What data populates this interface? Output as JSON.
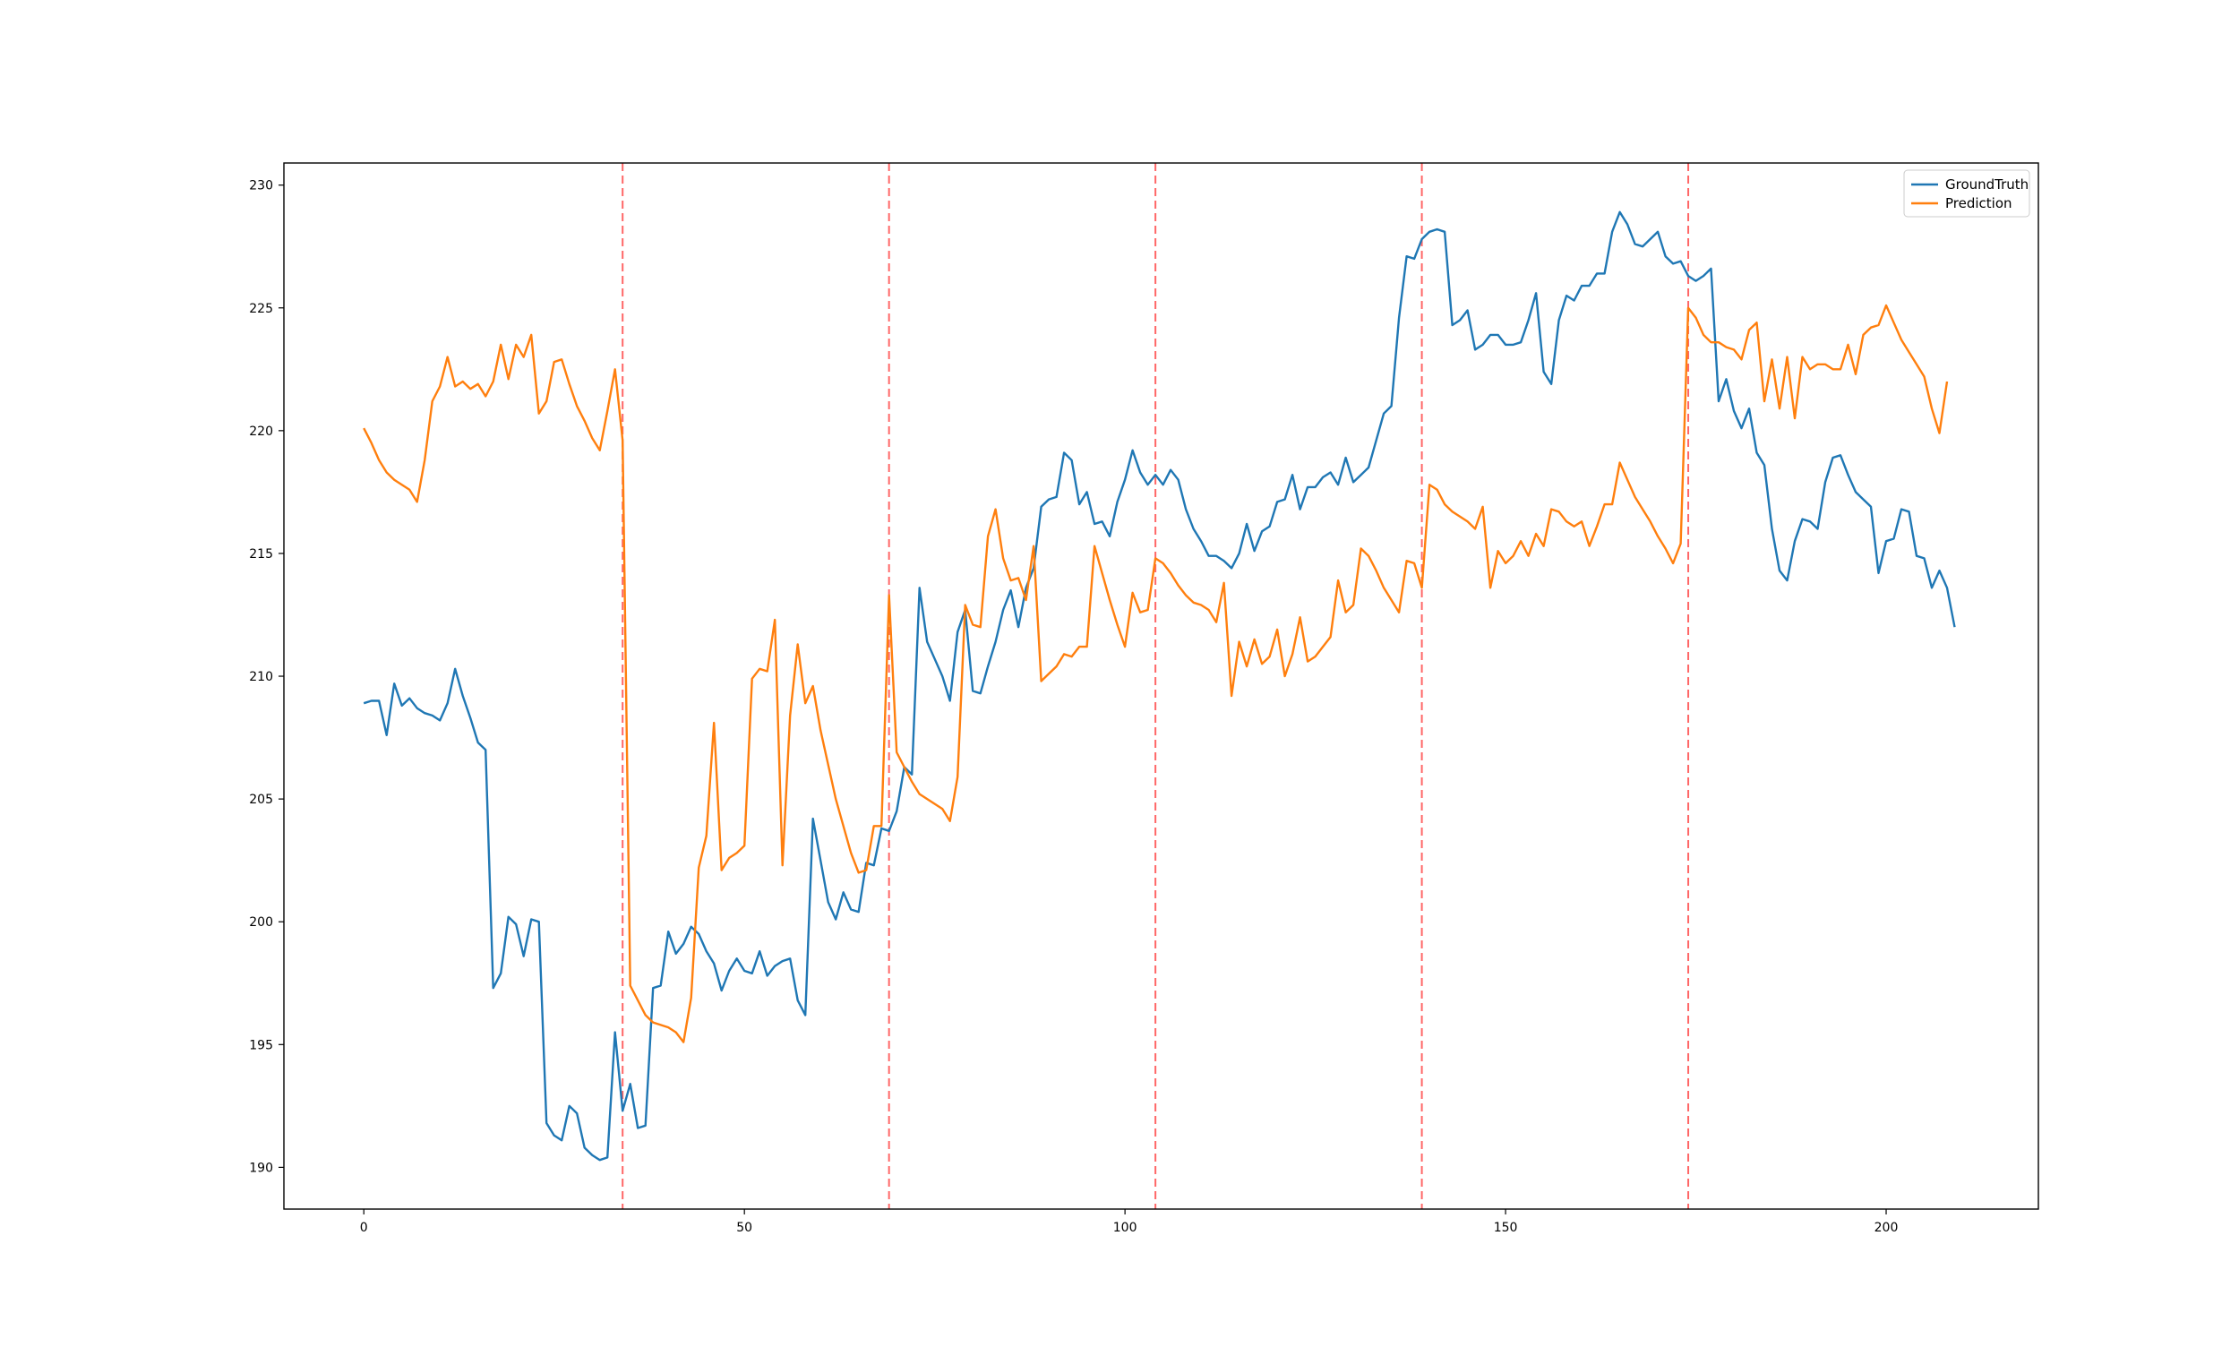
{
  "chart_data": {
    "type": "line",
    "title": "",
    "xlabel": "",
    "ylabel": "",
    "xlim": [
      -10.5,
      220
    ],
    "ylim": [
      188.3,
      230.9
    ],
    "xticks": [
      0,
      50,
      100,
      150,
      200
    ],
    "yticks": [
      190,
      195,
      200,
      205,
      210,
      215,
      220,
      225,
      230
    ],
    "grid": false,
    "legend": "top-right",
    "vlines": [
      34,
      69,
      104,
      139,
      174
    ],
    "vline_color": "#ff0000",
    "series": [
      {
        "name": "GroundTruth",
        "color": "#1f77b4",
        "values": [
          208.9,
          209.0,
          209.0,
          207.6,
          209.7,
          208.8,
          209.1,
          208.7,
          208.5,
          208.4,
          208.2,
          208.9,
          210.3,
          209.2,
          208.3,
          207.3,
          207.0,
          197.3,
          197.9,
          200.2,
          199.9,
          198.6,
          200.1,
          200.0,
          191.8,
          191.3,
          191.1,
          192.5,
          192.2,
          190.8,
          190.5,
          190.3,
          190.4,
          195.5,
          192.3,
          193.4,
          191.6,
          191.7,
          197.3,
          197.4,
          199.6,
          198.7,
          199.1,
          199.8,
          199.5,
          198.8,
          198.3,
          197.2,
          198.0,
          198.5,
          198.0,
          197.9,
          198.8,
          197.8,
          198.2,
          198.4,
          198.5,
          196.8,
          196.2,
          204.2,
          202.5,
          200.8,
          200.1,
          201.2,
          200.5,
          200.4,
          202.4,
          202.3,
          203.8,
          203.7,
          204.5,
          206.3,
          206.0,
          213.6,
          211.4,
          210.7,
          210.0,
          209.0,
          211.8,
          212.7,
          209.4,
          209.3,
          210.4,
          211.4,
          212.7,
          213.5,
          212.0,
          213.6,
          214.4,
          216.9,
          217.2,
          217.3,
          219.1,
          218.8,
          217.0,
          217.5,
          216.2,
          216.3,
          215.7,
          217.1,
          218.0,
          219.2,
          218.3,
          217.8,
          218.2,
          217.8,
          218.4,
          218.0,
          216.8,
          216.0,
          215.5,
          214.9,
          214.9,
          214.7,
          214.4,
          215.0,
          216.2,
          215.1,
          215.9,
          216.1,
          217.1,
          217.2,
          218.2,
          216.8,
          217.7,
          217.7,
          218.1,
          218.3,
          217.8,
          218.9,
          217.9,
          218.2,
          218.5,
          219.6,
          220.7,
          221.0,
          224.6,
          227.1,
          227.0,
          227.8,
          228.1,
          228.2,
          228.1,
          224.3,
          224.5,
          224.9,
          223.3,
          223.5,
          223.9,
          223.9,
          223.5,
          223.5,
          223.6,
          224.5,
          225.6,
          222.4,
          221.9,
          224.5,
          225.5,
          225.3,
          225.9,
          225.9,
          226.4,
          226.4,
          228.1,
          228.9,
          228.4,
          227.6,
          227.5,
          227.8,
          228.1,
          227.1,
          226.8,
          226.9,
          226.3,
          226.1,
          226.3,
          226.6,
          221.2,
          222.1,
          220.8,
          220.1,
          220.9,
          219.1,
          218.6,
          216.0,
          214.3,
          213.9,
          215.5,
          216.4,
          216.3,
          216.0,
          217.9,
          218.9,
          219.0,
          218.2,
          217.5,
          217.2,
          216.9,
          214.2,
          215.5,
          215.6,
          216.8,
          216.7,
          214.9,
          214.8,
          213.6,
          214.3,
          213.6,
          212.0
        ]
      },
      {
        "name": "Prediction",
        "color": "#ff7f0e",
        "values": [
          220.1,
          219.5,
          218.8,
          218.3,
          218.0,
          217.8,
          217.6,
          217.1,
          218.8,
          221.2,
          221.8,
          223.0,
          221.8,
          222.0,
          221.7,
          221.9,
          221.4,
          222.0,
          223.5,
          222.1,
          223.5,
          223.0,
          223.9,
          220.7,
          221.2,
          222.8,
          222.9,
          221.9,
          221.0,
          220.4,
          219.7,
          219.2,
          220.8,
          222.5,
          219.6,
          197.4,
          196.8,
          196.2,
          195.9,
          195.8,
          195.7,
          195.5,
          195.1,
          196.9,
          202.2,
          203.5,
          208.1,
          202.1,
          202.6,
          202.8,
          203.1,
          209.9,
          210.3,
          210.2,
          212.3,
          202.3,
          208.4,
          211.3,
          208.9,
          209.6,
          207.8,
          206.4,
          205.0,
          203.9,
          202.8,
          202.0,
          202.1,
          203.9,
          203.9,
          213.3,
          206.9,
          206.3,
          205.7,
          205.2,
          205.0,
          204.8,
          204.6,
          204.1,
          205.9,
          212.9,
          212.1,
          212.0,
          215.7,
          216.8,
          214.8,
          213.9,
          214.0,
          213.1,
          215.3,
          209.8,
          210.1,
          210.4,
          210.9,
          210.8,
          211.2,
          211.2,
          215.3,
          214.2,
          213.1,
          212.1,
          211.2,
          213.4,
          212.6,
          212.7,
          214.8,
          214.6,
          214.2,
          213.7,
          213.3,
          213.0,
          212.9,
          212.7,
          212.2,
          213.8,
          209.2,
          211.4,
          210.4,
          211.5,
          210.5,
          210.8,
          211.9,
          210.0,
          210.9,
          212.4,
          210.6,
          210.8,
          211.2,
          211.6,
          213.9,
          212.6,
          212.9,
          215.2,
          214.9,
          214.3,
          213.6,
          213.1,
          212.6,
          214.7,
          214.6,
          213.6,
          217.8,
          217.6,
          217.0,
          216.7,
          216.5,
          216.3,
          216.0,
          216.9,
          213.6,
          215.1,
          214.6,
          214.9,
          215.5,
          214.9,
          215.8,
          215.3,
          216.8,
          216.7,
          216.3,
          216.1,
          216.3,
          215.3,
          216.1,
          217.0,
          217.0,
          218.7,
          218.0,
          217.3,
          216.8,
          216.3,
          215.7,
          215.2,
          214.6,
          215.4,
          225.0,
          224.6,
          223.9,
          223.6,
          223.6,
          223.4,
          223.3,
          222.9,
          224.1,
          224.4,
          221.2,
          222.9,
          220.9,
          223.0,
          220.5,
          223.0,
          222.5,
          222.7,
          222.7,
          222.5,
          222.5,
          223.5,
          222.3,
          223.9,
          224.2,
          224.3,
          225.1,
          224.4,
          223.7,
          223.2,
          222.7,
          222.2,
          220.9,
          219.9,
          222.0
        ]
      }
    ]
  }
}
